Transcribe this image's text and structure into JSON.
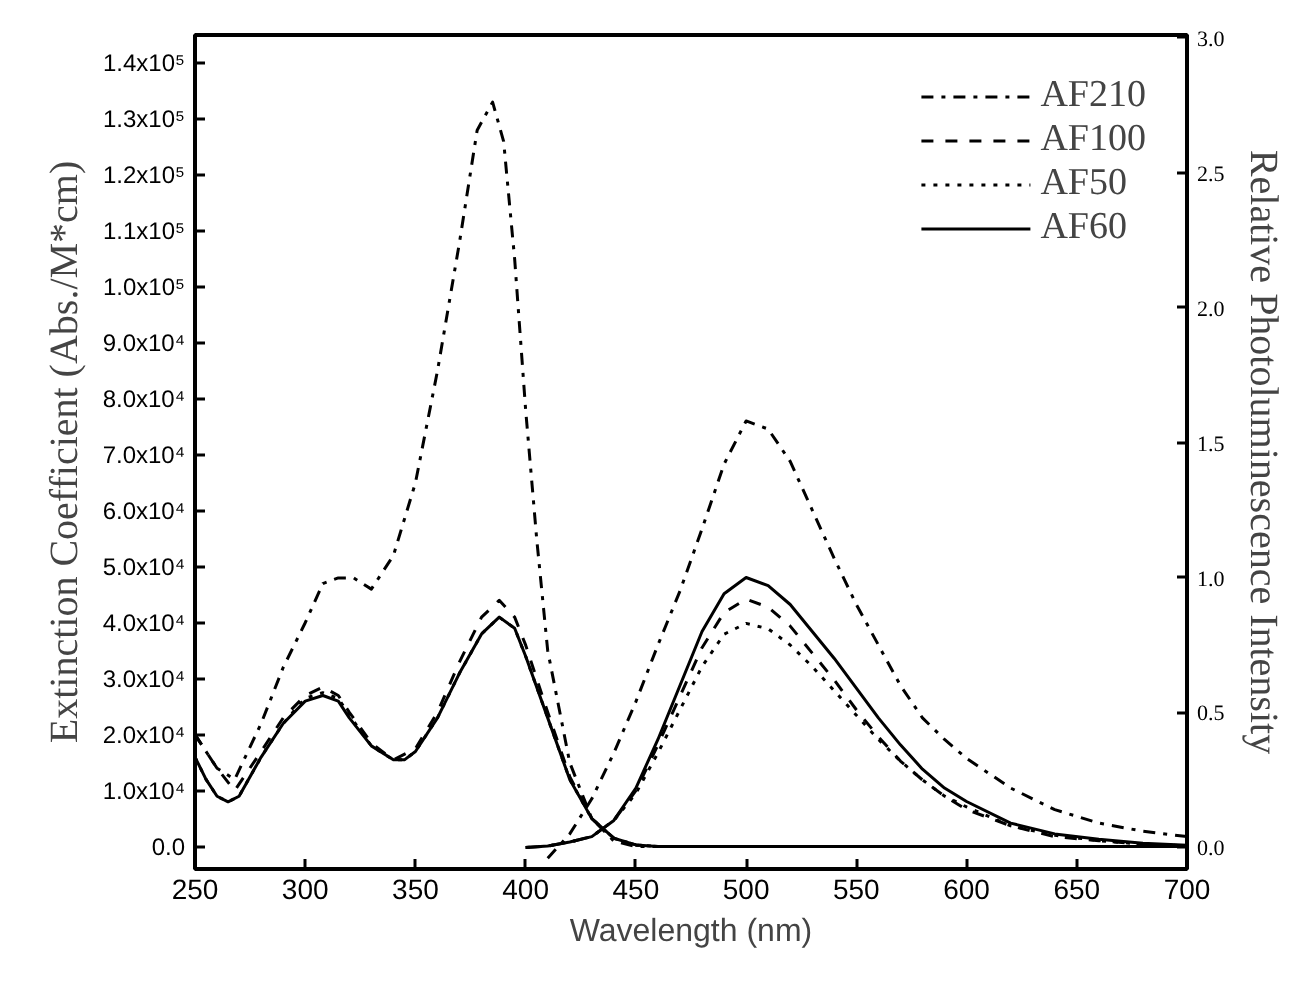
{
  "chart_data": {
    "type": "line",
    "xlabel": "Wavelength (nm)",
    "ylabel": "Extinction Coefficient (Abs./M*cm)",
    "y2label": "Relative Photoluminescence Intensity",
    "xlim": [
      250,
      700
    ],
    "xticks": [
      250,
      300,
      350,
      400,
      450,
      500,
      550,
      600,
      650,
      700
    ],
    "ylim": [
      -4000,
      145000
    ],
    "yticks": [
      {
        "value": 0,
        "label": "0.0"
      },
      {
        "value": 10000,
        "label": "1.0x10⁴"
      },
      {
        "value": 20000,
        "label": "2.0x10⁴"
      },
      {
        "value": 30000,
        "label": "3.0x10⁴"
      },
      {
        "value": 40000,
        "label": "4.0x10⁴"
      },
      {
        "value": 50000,
        "label": "5.0x10⁴"
      },
      {
        "value": 60000,
        "label": "6.0x10⁴"
      },
      {
        "value": 70000,
        "label": "7.0x10⁴"
      },
      {
        "value": 80000,
        "label": "8.0x10⁴"
      },
      {
        "value": 90000,
        "label": "9.0x10⁴"
      },
      {
        "value": 100000,
        "label": "1.0x10⁵"
      },
      {
        "value": 110000,
        "label": "1.1x10⁵"
      },
      {
        "value": 120000,
        "label": "1.2x10⁵"
      },
      {
        "value": 130000,
        "label": "1.3x10⁵"
      },
      {
        "value": 140000,
        "label": "1.4x10⁵"
      }
    ],
    "y2lim": [
      -0.08,
      3.01
    ],
    "y2ticks": [
      {
        "value": 0,
        "label": "0.0"
      },
      {
        "value": 0.5,
        "label": "0.5"
      },
      {
        "value": 1,
        "label": "1.0"
      },
      {
        "value": 1.5,
        "label": "1.5"
      },
      {
        "value": 2,
        "label": "2.0"
      },
      {
        "value": 2.5,
        "label": "2.5"
      },
      {
        "value": 3,
        "label": "3.0"
      }
    ],
    "grid": false,
    "legend": "top right",
    "series": [
      {
        "name": "AF210",
        "color": "#000000",
        "line_style": "dashdot",
        "x": [
          250,
          260,
          268,
          280,
          290,
          300,
          308,
          315,
          322,
          330,
          340,
          350,
          360,
          370,
          378,
          385,
          390,
          395,
          400,
          405,
          410,
          420,
          430,
          440,
          450,
          700
        ],
        "values": [
          20000,
          14000,
          12000,
          22000,
          32000,
          40000,
          47000,
          48000,
          48000,
          46000,
          52000,
          65000,
          85000,
          108000,
          128000,
          133000,
          126000,
          105000,
          78000,
          55000,
          35000,
          15000,
          5000,
          1000,
          0,
          0
        ]
      },
      {
        "name": "AF100",
        "color": "#000000",
        "line_style": "dashed",
        "x": [
          250,
          260,
          268,
          280,
          290,
          300,
          308,
          315,
          320,
          330,
          340,
          350,
          360,
          370,
          380,
          388,
          395,
          400,
          410,
          420,
          430,
          440,
          450,
          460,
          700
        ],
        "values": [
          20000,
          14000,
          10000,
          17000,
          23000,
          27000,
          28500,
          27000,
          24000,
          18500,
          15500,
          17500,
          24000,
          33000,
          41000,
          44000,
          41000,
          36000,
          24000,
          12500,
          5000,
          1500,
          300,
          0,
          0
        ]
      },
      {
        "name": "AF50",
        "color": "#000000",
        "line_style": "dotted",
        "x": [
          250,
          255,
          260,
          265,
          270,
          280,
          290,
          300,
          308,
          315,
          320,
          330,
          340,
          345,
          350,
          360,
          370,
          380,
          388,
          395,
          400,
          410,
          420,
          430,
          440,
          450,
          460,
          700
        ],
        "values": [
          16000,
          12000,
          9000,
          8000,
          9000,
          16000,
          22000,
          26500,
          27500,
          26500,
          23500,
          18000,
          15500,
          15500,
          17000,
          23000,
          31000,
          38000,
          41000,
          39000,
          34000,
          23000,
          12000,
          5000,
          1500,
          300,
          0,
          0
        ]
      },
      {
        "name": "AF60",
        "color": "#000000",
        "line_style": "solid",
        "x": [
          250,
          255,
          260,
          265,
          270,
          280,
          290,
          300,
          308,
          315,
          320,
          330,
          340,
          345,
          350,
          360,
          370,
          380,
          388,
          395,
          400,
          410,
          420,
          430,
          440,
          450,
          460,
          700
        ],
        "values": [
          16000,
          12000,
          9000,
          8000,
          9000,
          16000,
          22000,
          26000,
          27000,
          26000,
          23000,
          18000,
          15500,
          15500,
          17000,
          23000,
          31000,
          38000,
          41000,
          39000,
          34000,
          23000,
          12000,
          5000,
          1500,
          300,
          0,
          0
        ]
      },
      {
        "color": "#000000",
        "line_style": "dashdot",
        "axis": "y2",
        "x": [
          410,
          420,
          430,
          440,
          450,
          460,
          470,
          480,
          490,
          500,
          510,
          520,
          530,
          540,
          550,
          560,
          570,
          580,
          590,
          600,
          620,
          640,
          660,
          680,
          700
        ],
        "values": [
          -0.04,
          0.05,
          0.18,
          0.35,
          0.54,
          0.75,
          0.95,
          1.18,
          1.42,
          1.58,
          1.55,
          1.43,
          1.25,
          1.07,
          0.9,
          0.75,
          0.6,
          0.48,
          0.4,
          0.33,
          0.22,
          0.14,
          0.09,
          0.06,
          0.04
        ]
      },
      {
        "color": "#000000",
        "line_style": "dashed",
        "axis": "y2",
        "x": [
          400,
          410,
          420,
          430,
          440,
          450,
          460,
          470,
          480,
          490,
          500,
          510,
          520,
          530,
          540,
          550,
          560,
          570,
          580,
          590,
          600,
          620,
          640,
          660,
          680,
          700
        ],
        "values": [
          0,
          0.005,
          0.02,
          0.04,
          0.1,
          0.21,
          0.38,
          0.56,
          0.74,
          0.87,
          0.92,
          0.89,
          0.82,
          0.72,
          0.62,
          0.51,
          0.41,
          0.32,
          0.25,
          0.19,
          0.14,
          0.08,
          0.04,
          0.025,
          0.012,
          0.006
        ]
      },
      {
        "color": "#000000",
        "line_style": "dotted",
        "axis": "y2",
        "x": [
          400,
          410,
          420,
          430,
          440,
          450,
          460,
          470,
          480,
          490,
          500,
          510,
          520,
          530,
          540,
          550,
          560,
          570,
          580,
          590,
          600,
          620,
          640,
          660,
          680,
          700
        ],
        "values": [
          0,
          0.005,
          0.02,
          0.04,
          0.1,
          0.2,
          0.35,
          0.51,
          0.67,
          0.79,
          0.83,
          0.81,
          0.75,
          0.67,
          0.58,
          0.49,
          0.4,
          0.32,
          0.25,
          0.19,
          0.15,
          0.08,
          0.045,
          0.025,
          0.012,
          0.006
        ]
      },
      {
        "color": "#000000",
        "line_style": "solid",
        "axis": "y2",
        "x": [
          400,
          410,
          420,
          430,
          440,
          450,
          460,
          470,
          480,
          490,
          500,
          510,
          520,
          530,
          540,
          550,
          560,
          570,
          580,
          590,
          600,
          620,
          640,
          660,
          680,
          700
        ],
        "values": [
          0,
          0.005,
          0.02,
          0.04,
          0.1,
          0.22,
          0.4,
          0.6,
          0.8,
          0.94,
          1.0,
          0.97,
          0.9,
          0.8,
          0.7,
          0.59,
          0.48,
          0.38,
          0.29,
          0.22,
          0.17,
          0.09,
          0.05,
          0.03,
          0.015,
          0.008
        ]
      }
    ]
  }
}
